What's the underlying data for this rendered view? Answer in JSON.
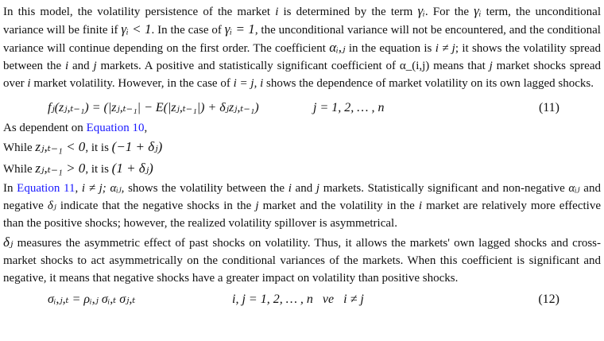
{
  "p1": {
    "t1": "In this model, the volatility persistence of the market ",
    "i": "i",
    "t2": " is determined by the term ",
    "gamma_i": "γᵢ",
    "t3": ". For the ",
    "t4": " term, the unconditional variance will be finite if ",
    "cond1": "γᵢ < 1",
    "t5": ". In the case of ",
    "cond2": "γᵢ = 1",
    "t6": ", the unconditional variance will not be encountered, and the conditional variance will continue depending on the first order. The coefficient ",
    "alpha": "αᵢ,ⱼ",
    "t7": " in the equation is ",
    "ineq": "i ≠ j",
    "t8": "; it shows the volatility spread between the ",
    "j": "j",
    "t9": " and ",
    "t10": " markets. A positive and statistically significant coefficient of α_(i,j) means that ",
    "t11": " market shocks spread over ",
    "t12": " market volatility. However, in the case of ",
    "ieqj": "i = j",
    "t13": ", ",
    "t14": " shows the dependence of market volatility on its own lagged shocks."
  },
  "eq11": {
    "lhs": "fⱼ(zⱼ,ₜ₋₁) = (|zⱼ,ₜ₋₁| − E(|zⱼ,ₜ₋₁|) + δⱼzⱼ,ₜ₋₁)",
    "range": "j = 1, 2, … , n",
    "number": "(11)"
  },
  "p2": {
    "t1": "As dependent on ",
    "link": "Equation 10",
    "t2": ","
  },
  "while1": {
    "w": "While ",
    "z": "zⱼ,ₜ₋₁ < 0",
    "t": ", it is ",
    "v": "(−1 + δⱼ)"
  },
  "while2": {
    "w": "While ",
    "z": "zⱼ,ₜ₋₁ > 0",
    "t": ", it is ",
    "v": "(1 + δⱼ)"
  },
  "p3": {
    "t1": "In ",
    "link": "Equation 11",
    "t2": ", ",
    "ineq": "i ≠ j; αᵢⱼ,",
    "t3": " shows the volatility between the ",
    "i": "i",
    "t4": " and ",
    "j": "j",
    "t5": " markets. Statistically significant and non-negative ",
    "alpha": "αᵢⱼ",
    "t6": " and negative ",
    "delta": "δⱼ",
    "t7": " indicate that the negative shocks in the ",
    "t8": " market and the volatility in the ",
    "t9": " market are relatively more effective than the positive shocks; however, the realized volatility spillover is asymmetrical."
  },
  "p4": {
    "delta": "δⱼ",
    "t1": " measures the asymmetric effect of past shocks on volatility. Thus, it allows the markets' own lagged shocks and cross-market shocks to act asymmetrically on the conditional variances of the markets. When this coefficient is significant and negative, it means that negative shocks have a greater impact on volatility than positive shocks."
  },
  "eq12": {
    "lhs": "σᵢ,ⱼ,ₜ = ρᵢ,ⱼ σᵢ,ₜ σⱼ,ₜ",
    "range": "i, j = 1, 2, … , n   ve   i ≠ j",
    "number": "(12)"
  },
  "link_color": "#1a1aff"
}
